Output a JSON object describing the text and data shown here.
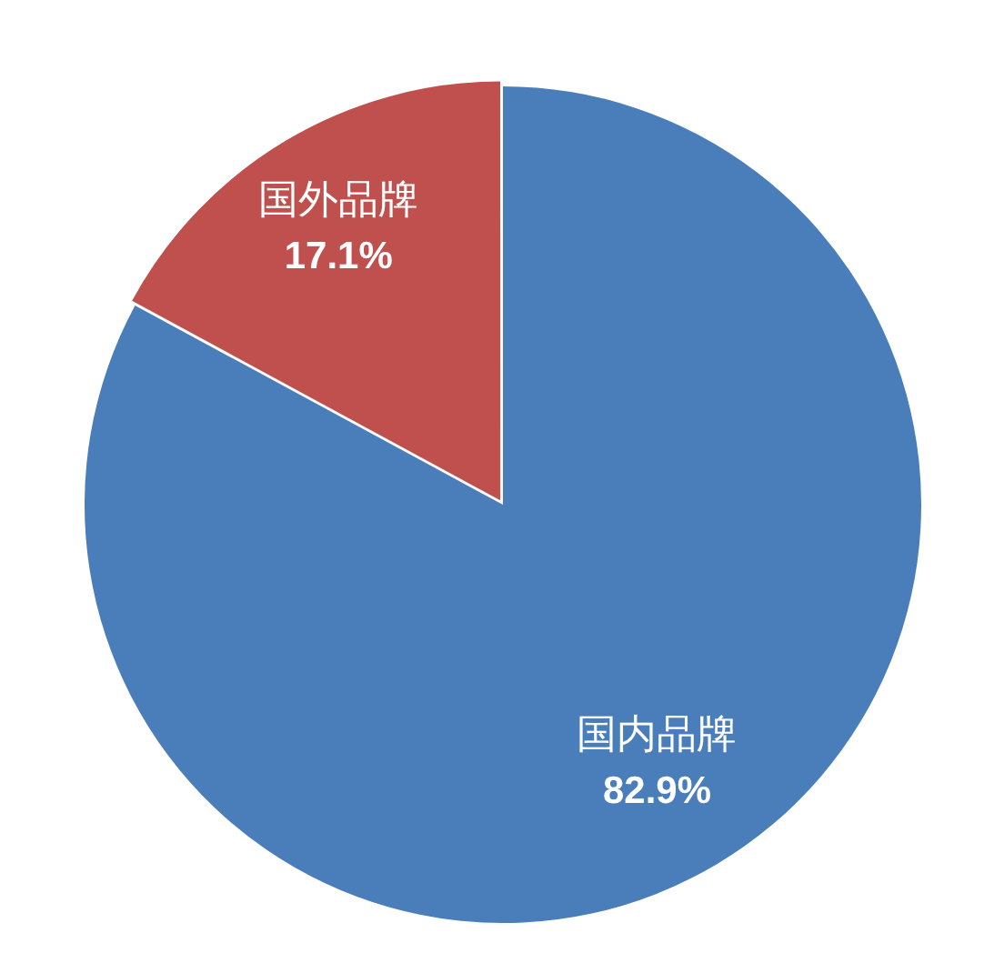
{
  "chart_data": {
    "type": "pie",
    "categories": [
      "国内品牌",
      "国外品牌"
    ],
    "values": [
      82.9,
      17.1
    ],
    "colors": [
      "#4a7ebb",
      "#c0504d"
    ],
    "value_labels": [
      "82.9%",
      "17.1%"
    ]
  }
}
